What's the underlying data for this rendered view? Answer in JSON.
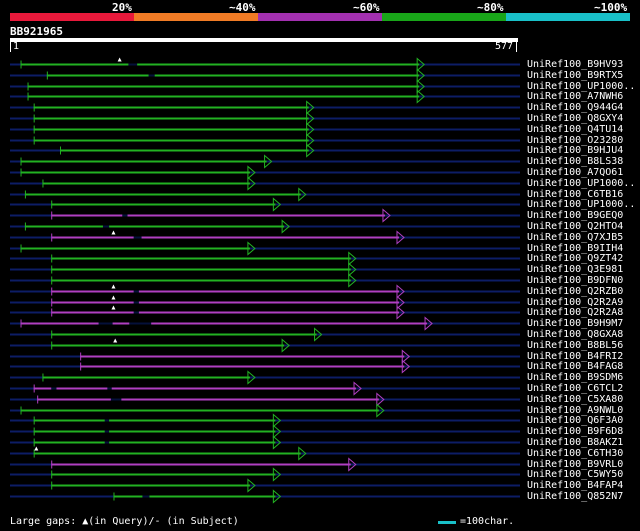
{
  "colors": {
    "background": "#000000",
    "green": "#22b222",
    "magenta": "#b03fc2",
    "gridline": "#0d1d66",
    "scale": [
      "#e8193b",
      "#f07b25",
      "#a330b0",
      "#19a619",
      "#19c0c8"
    ],
    "cyan": "#19c0c8"
  },
  "scale_labels": [
    "20%",
    "~40%",
    "~60%",
    "~80%",
    "~100%"
  ],
  "query": {
    "id": "BB921965",
    "start": "1",
    "end": "577",
    "length": 577
  },
  "hits": [
    {
      "name": "UniRef100_B9HV93",
      "start": 12,
      "end": 470,
      "color": "green",
      "gaps": [
        {
          "q": 135,
          "s": 145
        }
      ],
      "tri": [
        125
      ]
    },
    {
      "name": "UniRef100_B9RTX5",
      "start": 42,
      "end": 470,
      "color": "green",
      "gaps": [
        {
          "q": 158,
          "s": 165
        }
      ],
      "tri": []
    },
    {
      "name": "UniRef100_UP1000..",
      "start": 20,
      "end": 470,
      "color": "green",
      "gaps": [],
      "tri": []
    },
    {
      "name": "UniRef100_A7NWH6",
      "start": 20,
      "end": 470,
      "color": "green",
      "gaps": [],
      "tri": []
    },
    {
      "name": "UniRef100_Q944G4",
      "start": 27,
      "end": 344,
      "color": "green",
      "gaps": [],
      "tri": []
    },
    {
      "name": "UniRef100_Q8GXY4",
      "start": 27,
      "end": 344,
      "color": "green",
      "gaps": [],
      "tri": []
    },
    {
      "name": "UniRef100_Q4TU14",
      "start": 27,
      "end": 344,
      "color": "green",
      "gaps": [],
      "tri": []
    },
    {
      "name": "UniRef100_O23280",
      "start": 27,
      "end": 344,
      "color": "green",
      "gaps": [],
      "tri": []
    },
    {
      "name": "UniRef100_B9HJU4",
      "start": 57,
      "end": 344,
      "color": "green",
      "gaps": [],
      "tri": []
    },
    {
      "name": "UniRef100_B8LS38",
      "start": 12,
      "end": 296,
      "color": "green",
      "gaps": [],
      "tri": []
    },
    {
      "name": "UniRef100_A7QO61",
      "start": 12,
      "end": 277,
      "color": "green",
      "gaps": [],
      "tri": []
    },
    {
      "name": "UniRef100_UP1000..",
      "start": 37,
      "end": 277,
      "color": "green",
      "gaps": [],
      "tri": []
    },
    {
      "name": "UniRef100_C6TB16",
      "start": 17,
      "end": 335,
      "color": "green",
      "gaps": [],
      "tri": []
    },
    {
      "name": "UniRef100_UP1000..",
      "start": 47,
      "end": 306,
      "color": "green",
      "gaps": [],
      "tri": []
    },
    {
      "name": "UniRef100_B9GEQ0",
      "start": 47,
      "end": 431,
      "color": "magenta",
      "gaps": [
        {
          "q": 128,
          "s": 134
        }
      ],
      "tri": []
    },
    {
      "name": "UniRef100_Q2HTO4",
      "start": 17,
      "end": 316,
      "color": "green",
      "gaps": [
        {
          "q": 106,
          "s": 113
        }
      ],
      "tri": []
    },
    {
      "name": "UniRef100_Q7XJB5",
      "start": 47,
      "end": 447,
      "color": "magenta",
      "gaps": [
        {
          "q": 141,
          "s": 150
        }
      ],
      "tri": [
        118
      ]
    },
    {
      "name": "UniRef100_B9IIH4",
      "start": 12,
      "end": 277,
      "color": "green",
      "gaps": [],
      "tri": []
    },
    {
      "name": "UniRef100_Q9ZT42",
      "start": 47,
      "end": 392,
      "color": "green",
      "gaps": [],
      "tri": []
    },
    {
      "name": "UniRef100_Q3E981",
      "start": 47,
      "end": 392,
      "color": "green",
      "gaps": [],
      "tri": []
    },
    {
      "name": "UniRef100_B9DFN0",
      "start": 47,
      "end": 392,
      "color": "green",
      "gaps": [],
      "tri": []
    },
    {
      "name": "UniRef100_Q2RZB0",
      "start": 47,
      "end": 447,
      "color": "magenta",
      "gaps": [
        {
          "q": 141,
          "s": 147
        }
      ],
      "tri": [
        118
      ]
    },
    {
      "name": "UniRef100_Q2R2A9",
      "start": 47,
      "end": 447,
      "color": "magenta",
      "gaps": [
        {
          "q": 141,
          "s": 147
        }
      ],
      "tri": [
        118
      ]
    },
    {
      "name": "UniRef100_Q2R2A8",
      "start": 47,
      "end": 447,
      "color": "magenta",
      "gaps": [
        {
          "q": 141,
          "s": 147
        }
      ],
      "tri": [
        118
      ]
    },
    {
      "name": "UniRef100_B9H9M7",
      "start": 12,
      "end": 479,
      "color": "magenta",
      "gaps": [
        {
          "q": 101,
          "s": 117
        },
        {
          "q": 136,
          "s": 161
        }
      ],
      "tri": []
    },
    {
      "name": "UniRef100_Q8GXA8",
      "start": 47,
      "end": 353,
      "color": "green",
      "gaps": [],
      "tri": []
    },
    {
      "name": "UniRef100_B8BL56",
      "start": 47,
      "end": 316,
      "color": "green",
      "gaps": [],
      "tri": [
        120
      ]
    },
    {
      "name": "UniRef100_B4FRI2",
      "start": 80,
      "end": 453,
      "color": "magenta",
      "gaps": [],
      "tri": []
    },
    {
      "name": "UniRef100_B4FAG8",
      "start": 80,
      "end": 453,
      "color": "magenta",
      "gaps": [],
      "tri": []
    },
    {
      "name": "UniRef100_B9SDM6",
      "start": 37,
      "end": 277,
      "color": "green",
      "gaps": [],
      "tri": []
    },
    {
      "name": "UniRef100_C6TCL2",
      "start": 27,
      "end": 398,
      "color": "magenta",
      "gaps": [
        {
          "q": 47,
          "s": 53
        },
        {
          "q": 111,
          "s": 116
        }
      ],
      "tri": []
    },
    {
      "name": "UniRef100_C5XA80",
      "start": 31,
      "end": 424,
      "color": "magenta",
      "gaps": [
        {
          "q": 115,
          "s": 127
        }
      ],
      "tri": []
    },
    {
      "name": "UniRef100_A9NWL0",
      "start": 12,
      "end": 424,
      "color": "green",
      "gaps": [],
      "tri": []
    },
    {
      "name": "UniRef100_Q6F3A0",
      "start": 27,
      "end": 306,
      "color": "green",
      "gaps": [
        {
          "q": 108,
          "s": 113
        }
      ],
      "tri": []
    },
    {
      "name": "UniRef100_B9F6D8",
      "start": 27,
      "end": 306,
      "color": "green",
      "gaps": [
        {
          "q": 108,
          "s": 113
        }
      ],
      "tri": []
    },
    {
      "name": "UniRef100_B8AKZ1",
      "start": 27,
      "end": 306,
      "color": "green",
      "gaps": [
        {
          "q": 108,
          "s": 113
        }
      ],
      "tri": []
    },
    {
      "name": "UniRef100_C6TH30",
      "start": 27,
      "end": 335,
      "color": "green",
      "gaps": [],
      "tri": [
        30
      ]
    },
    {
      "name": "UniRef100_B9VRL0",
      "start": 47,
      "end": 392,
      "color": "magenta",
      "gaps": [],
      "tri": []
    },
    {
      "name": "UniRef100_C5WY50",
      "start": 47,
      "end": 306,
      "color": "green",
      "gaps": [],
      "tri": []
    },
    {
      "name": "UniRef100_B4FAP4",
      "start": 47,
      "end": 277,
      "color": "green",
      "gaps": [],
      "tri": []
    },
    {
      "name": "UniRef100_Q852N7",
      "start": 118,
      "end": 306,
      "color": "green",
      "gaps": [
        {
          "q": 151,
          "s": 159
        }
      ],
      "tri": []
    }
  ],
  "footer": {
    "gaps_text": "Large gaps: ▲(in Query)/- (in Subject)",
    "unit_text": "=100char."
  }
}
